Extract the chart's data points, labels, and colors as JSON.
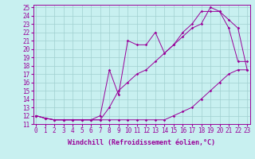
{
  "xlabel": "Windchill (Refroidissement éolien,°C)",
  "bg_color": "#c8f0f0",
  "grid_color": "#a0d0d0",
  "line_color": "#990099",
  "xlim": [
    0,
    23
  ],
  "ylim": [
    11,
    25
  ],
  "xticks": [
    0,
    1,
    2,
    3,
    4,
    5,
    6,
    7,
    8,
    9,
    10,
    11,
    12,
    13,
    14,
    15,
    16,
    17,
    18,
    19,
    20,
    21,
    22,
    23
  ],
  "yticks": [
    11,
    12,
    13,
    14,
    15,
    16,
    17,
    18,
    19,
    20,
    21,
    22,
    23,
    24,
    25
  ],
  "line1_x": [
    0,
    1,
    2,
    3,
    4,
    5,
    6,
    7,
    8,
    9,
    10,
    11,
    12,
    13,
    14,
    15,
    16,
    17,
    18,
    19,
    20,
    21,
    22,
    23
  ],
  "line1_y": [
    12.0,
    11.7,
    11.5,
    11.5,
    11.5,
    11.5,
    11.5,
    11.5,
    11.5,
    11.5,
    11.5,
    11.5,
    11.5,
    11.5,
    11.5,
    12.0,
    12.5,
    13.0,
    14.0,
    15.0,
    16.0,
    17.0,
    17.5,
    17.5
  ],
  "line2_x": [
    0,
    1,
    2,
    3,
    4,
    5,
    6,
    7,
    8,
    9,
    10,
    11,
    12,
    13,
    14,
    15,
    16,
    17,
    18,
    19,
    20,
    21,
    22,
    23
  ],
  "line2_y": [
    12.0,
    11.7,
    11.5,
    11.5,
    11.5,
    11.5,
    11.5,
    12.0,
    17.5,
    14.5,
    21.0,
    20.5,
    20.5,
    22.0,
    19.5,
    20.5,
    22.0,
    23.0,
    24.5,
    24.5,
    24.5,
    22.5,
    18.5,
    18.5
  ],
  "line3_x": [
    0,
    1,
    2,
    3,
    4,
    5,
    6,
    7,
    8,
    9,
    10,
    11,
    12,
    13,
    14,
    15,
    16,
    17,
    18,
    19,
    20,
    21,
    22,
    23
  ],
  "line3_y": [
    12.0,
    11.7,
    11.5,
    11.5,
    11.5,
    11.5,
    11.5,
    11.5,
    13.0,
    15.0,
    16.0,
    17.0,
    17.5,
    18.5,
    19.5,
    20.5,
    21.5,
    22.5,
    23.0,
    25.0,
    24.5,
    23.5,
    22.5,
    17.5
  ],
  "xlabel_fontsize": 6,
  "tick_fontsize": 5.5,
  "marker": "D",
  "markersize": 1.8,
  "linewidth": 0.7
}
